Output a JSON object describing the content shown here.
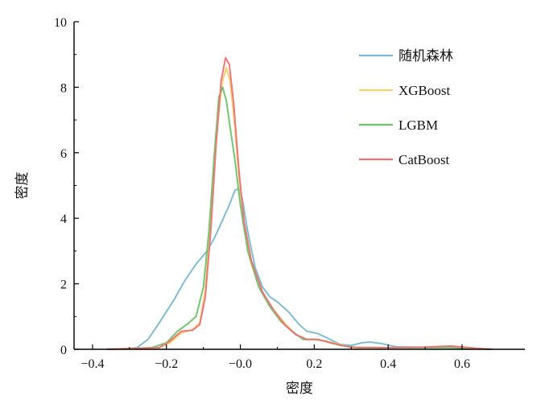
{
  "chart_data": {
    "type": "line",
    "xlabel": "密度",
    "ylabel": "密度",
    "xlim": [
      -0.45,
      0.77
    ],
    "ylim": [
      0,
      10
    ],
    "xticks": [
      -0.4,
      -0.2,
      0.0,
      0.2,
      0.4,
      0.6
    ],
    "xtick_labels": [
      "−0.4",
      "−0.2",
      "−0.0",
      "0.2",
      "0.4",
      "0.6"
    ],
    "yticks": [
      0,
      2,
      4,
      6,
      8,
      10
    ],
    "ytick_labels": [
      "0",
      "2",
      "4",
      "6",
      "8",
      "10"
    ],
    "legend_position": "top-right",
    "grid": false,
    "series": [
      {
        "name": "随机森林",
        "color": "#7ab8d4",
        "points": [
          [
            -0.32,
            0
          ],
          [
            -0.28,
            0.05
          ],
          [
            -0.25,
            0.3
          ],
          [
            -0.22,
            0.8
          ],
          [
            -0.18,
            1.5
          ],
          [
            -0.15,
            2.1
          ],
          [
            -0.12,
            2.6
          ],
          [
            -0.09,
            3.0
          ],
          [
            -0.07,
            3.4
          ],
          [
            -0.05,
            3.9
          ],
          [
            -0.03,
            4.4
          ],
          [
            -0.015,
            4.85
          ],
          [
            -0.005,
            4.9
          ],
          [
            0.005,
            4.6
          ],
          [
            0.02,
            3.6
          ],
          [
            0.04,
            2.5
          ],
          [
            0.06,
            1.9
          ],
          [
            0.08,
            1.6
          ],
          [
            0.1,
            1.45
          ],
          [
            0.13,
            1.15
          ],
          [
            0.16,
            0.75
          ],
          [
            0.18,
            0.55
          ],
          [
            0.21,
            0.48
          ],
          [
            0.24,
            0.32
          ],
          [
            0.27,
            0.15
          ],
          [
            0.3,
            0.12
          ],
          [
            0.33,
            0.2
          ],
          [
            0.35,
            0.22
          ],
          [
            0.38,
            0.18
          ],
          [
            0.42,
            0.08
          ],
          [
            0.5,
            0.05
          ],
          [
            0.57,
            0.06
          ],
          [
            0.63,
            0.02
          ],
          [
            0.68,
            0
          ]
        ]
      },
      {
        "name": "XGBoost",
        "color": "#f7cf6e",
        "points": [
          [
            -0.36,
            0
          ],
          [
            -0.22,
            0.05
          ],
          [
            -0.19,
            0.2
          ],
          [
            -0.16,
            0.5
          ],
          [
            -0.13,
            0.6
          ],
          [
            -0.11,
            0.8
          ],
          [
            -0.095,
            1.8
          ],
          [
            -0.08,
            4.0
          ],
          [
            -0.065,
            6.5
          ],
          [
            -0.05,
            8.1
          ],
          [
            -0.038,
            8.6
          ],
          [
            -0.028,
            8.2
          ],
          [
            -0.015,
            6.8
          ],
          [
            -0.005,
            5.4
          ],
          [
            0.01,
            3.8
          ],
          [
            0.03,
            2.6
          ],
          [
            0.06,
            1.7
          ],
          [
            0.09,
            1.2
          ],
          [
            0.12,
            0.8
          ],
          [
            0.15,
            0.45
          ],
          [
            0.18,
            0.3
          ],
          [
            0.21,
            0.3
          ],
          [
            0.25,
            0.2
          ],
          [
            0.3,
            0.06
          ],
          [
            0.4,
            0.05
          ],
          [
            0.5,
            0.06
          ],
          [
            0.58,
            0.08
          ],
          [
            0.65,
            0.02
          ],
          [
            0.68,
            0
          ]
        ]
      },
      {
        "name": "LGBM",
        "color": "#6cc36c",
        "points": [
          [
            -0.36,
            0
          ],
          [
            -0.24,
            0.05
          ],
          [
            -0.2,
            0.2
          ],
          [
            -0.17,
            0.55
          ],
          [
            -0.14,
            0.8
          ],
          [
            -0.12,
            1.0
          ],
          [
            -0.1,
            1.9
          ],
          [
            -0.085,
            3.6
          ],
          [
            -0.07,
            6.0
          ],
          [
            -0.058,
            7.7
          ],
          [
            -0.048,
            8.0
          ],
          [
            -0.038,
            7.6
          ],
          [
            -0.028,
            6.8
          ],
          [
            -0.015,
            5.8
          ],
          [
            0.0,
            4.4
          ],
          [
            0.02,
            3.0
          ],
          [
            0.05,
            1.9
          ],
          [
            0.08,
            1.3
          ],
          [
            0.11,
            0.85
          ],
          [
            0.14,
            0.55
          ],
          [
            0.17,
            0.3
          ],
          [
            0.2,
            0.3
          ],
          [
            0.23,
            0.25
          ],
          [
            0.27,
            0.12
          ],
          [
            0.32,
            0.05
          ],
          [
            0.45,
            0.05
          ],
          [
            0.55,
            0.06
          ],
          [
            0.62,
            0.03
          ],
          [
            0.68,
            0
          ]
        ]
      },
      {
        "name": "CatBoost",
        "color": "#ec7272",
        "points": [
          [
            -0.36,
            0
          ],
          [
            -0.22,
            0.05
          ],
          [
            -0.19,
            0.25
          ],
          [
            -0.16,
            0.55
          ],
          [
            -0.13,
            0.58
          ],
          [
            -0.11,
            0.75
          ],
          [
            -0.095,
            1.6
          ],
          [
            -0.08,
            3.6
          ],
          [
            -0.066,
            6.2
          ],
          [
            -0.052,
            8.2
          ],
          [
            -0.04,
            8.9
          ],
          [
            -0.03,
            8.7
          ],
          [
            -0.018,
            7.5
          ],
          [
            -0.005,
            5.6
          ],
          [
            0.01,
            3.9
          ],
          [
            0.03,
            2.7
          ],
          [
            0.06,
            1.75
          ],
          [
            0.09,
            1.2
          ],
          [
            0.12,
            0.75
          ],
          [
            0.15,
            0.45
          ],
          [
            0.18,
            0.3
          ],
          [
            0.21,
            0.3
          ],
          [
            0.25,
            0.18
          ],
          [
            0.3,
            0.06
          ],
          [
            0.4,
            0.05
          ],
          [
            0.5,
            0.07
          ],
          [
            0.57,
            0.1
          ],
          [
            0.64,
            0.03
          ],
          [
            0.68,
            0
          ]
        ]
      }
    ]
  }
}
